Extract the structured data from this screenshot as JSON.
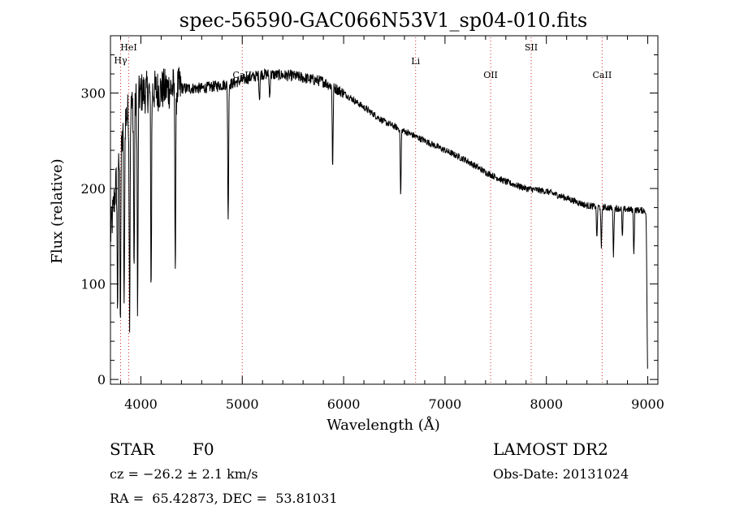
{
  "chart_data": {
    "type": "line",
    "title": "spec-56590-GAC066N53V1_sp04-010.fits",
    "xlabel": "Wavelength (Å)",
    "ylabel": "Flux (relative)",
    "xlim": [
      3700,
      9100
    ],
    "ylim": [
      -5,
      360
    ],
    "xticks": [
      4000,
      5000,
      6000,
      7000,
      8000,
      9000
    ],
    "yticks": [
      0,
      100,
      200,
      300
    ],
    "grid": false,
    "colors": {
      "line": "#000000",
      "marker": "#d62728"
    },
    "line_markers": [
      {
        "label": "Hγ",
        "wavelength": 3800
      },
      {
        "label": "HeI",
        "wavelength": 3880
      },
      {
        "label": "CaII",
        "wavelength": 5000
      },
      {
        "label": "Li",
        "wavelength": 6710
      },
      {
        "label": "OII",
        "wavelength": 7450
      },
      {
        "label": "SII",
        "wavelength": 7850
      },
      {
        "label": "CaII",
        "wavelength": 8550
      }
    ],
    "continuum": [
      [
        3700,
        150
      ],
      [
        3760,
        210
      ],
      [
        3850,
        275
      ],
      [
        4000,
        300
      ],
      [
        4300,
        305
      ],
      [
        4600,
        305
      ],
      [
        4900,
        310
      ],
      [
        5200,
        320
      ],
      [
        5500,
        318
      ],
      [
        5800,
        312
      ],
      [
        6000,
        300
      ],
      [
        6200,
        285
      ],
      [
        6400,
        270
      ],
      [
        6600,
        260
      ],
      [
        6800,
        250
      ],
      [
        7000,
        240
      ],
      [
        7200,
        230
      ],
      [
        7400,
        217
      ],
      [
        7600,
        207
      ],
      [
        7800,
        200
      ],
      [
        8000,
        197
      ],
      [
        8200,
        190
      ],
      [
        8400,
        182
      ],
      [
        8600,
        180
      ],
      [
        8800,
        178
      ],
      [
        8950,
        177
      ],
      [
        9000,
        177
      ]
    ],
    "absorption_lines": [
      {
        "wavelength": 3770,
        "depth": 140
      },
      {
        "wavelength": 3798,
        "depth": 170
      },
      {
        "wavelength": 3835,
        "depth": 200
      },
      {
        "wavelength": 3889,
        "depth": 210
      },
      {
        "wavelength": 3933,
        "depth": 180
      },
      {
        "wavelength": 3968,
        "depth": 230
      },
      {
        "wavelength": 4101,
        "depth": 205
      },
      {
        "wavelength": 4340,
        "depth": 190
      },
      {
        "wavelength": 4861,
        "depth": 145
      },
      {
        "wavelength": 5170,
        "depth": 25
      },
      {
        "wavelength": 5270,
        "depth": 25
      },
      {
        "wavelength": 5892,
        "depth": 85
      },
      {
        "wavelength": 6563,
        "depth": 70
      },
      {
        "wavelength": 8498,
        "depth": 35
      },
      {
        "wavelength": 8542,
        "depth": 45
      },
      {
        "wavelength": 8662,
        "depth": 50
      },
      {
        "wavelength": 8750,
        "depth": 30
      },
      {
        "wavelength": 8863,
        "depth": 45
      },
      {
        "wavelength": 9000,
        "depth": 175
      }
    ]
  },
  "info": {
    "object_class": "STAR",
    "subclass": "F0",
    "redshift": "cz = −26.2 ± 2.1 km/s",
    "coords": "RA =  65.42873, DEC =  53.81031",
    "survey": "LAMOST DR2",
    "obs_date": "Obs-Date: 20131024"
  }
}
